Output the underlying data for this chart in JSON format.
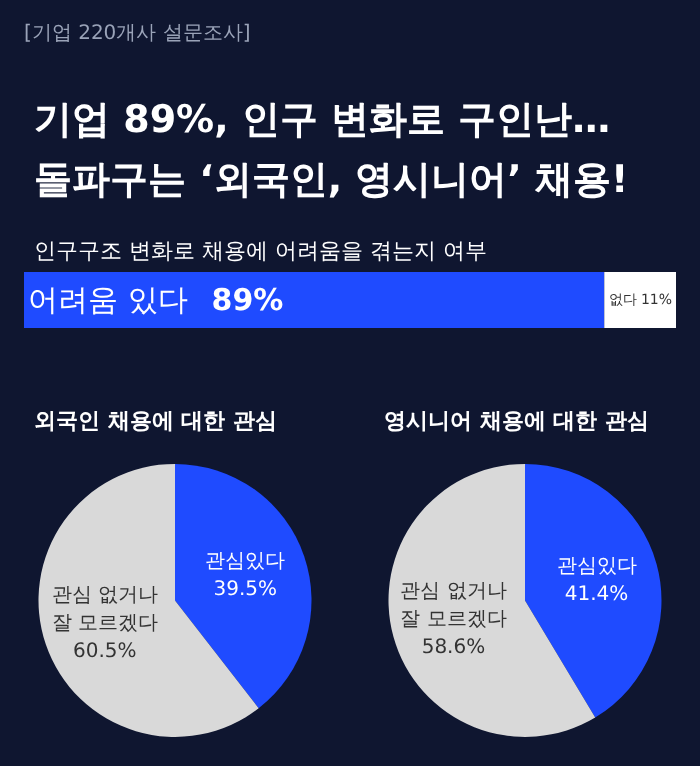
{
  "chart_data": [
    {
      "type": "bar",
      "orientation": "horizontal",
      "stacked": true,
      "title": "기업 89%, 인구 변화로 구인난…\n돌파구는 ‘외국인, 영시니어’ 채용!",
      "subtitle": "인구구조 변화로 채용에 어려움을 겪는지 여부",
      "annotations": [
        "[기업 220개사 설문조사]"
      ],
      "categories": [
        null
      ],
      "tick_labels": false,
      "legend": false,
      "series": [
        {
          "name": "어려움 있다",
          "color": "#1f4bff",
          "values": [
            89
          ],
          "value_labels": [
            "89%"
          ]
        },
        {
          "name": "없다",
          "color": "#ffffff",
          "values": [
            11
          ],
          "value_labels": [
            "11%"
          ]
        }
      ]
    },
    {
      "type": "pie",
      "title": "외국인 채용에 대한 관심",
      "categories": [
        "관심있다",
        "관심 없거나\n잘 모르겠다"
      ],
      "values": [
        39.5,
        60.5
      ],
      "colors": [
        "#1f4bff",
        "#d9d9d9"
      ],
      "value_labels": [
        "39.5%",
        "60.5%"
      ],
      "legend": false
    },
    {
      "type": "pie",
      "title": "영시니어 채용에 대한 관심",
      "categories": [
        "관심있다",
        "관심 없거나\n잘 모르겠다"
      ],
      "values": [
        41.4,
        58.6
      ],
      "colors": [
        "#1f4bff",
        "#d9d9d9"
      ],
      "value_labels": [
        "41.4%",
        "58.6%"
      ],
      "legend": false
    }
  ]
}
